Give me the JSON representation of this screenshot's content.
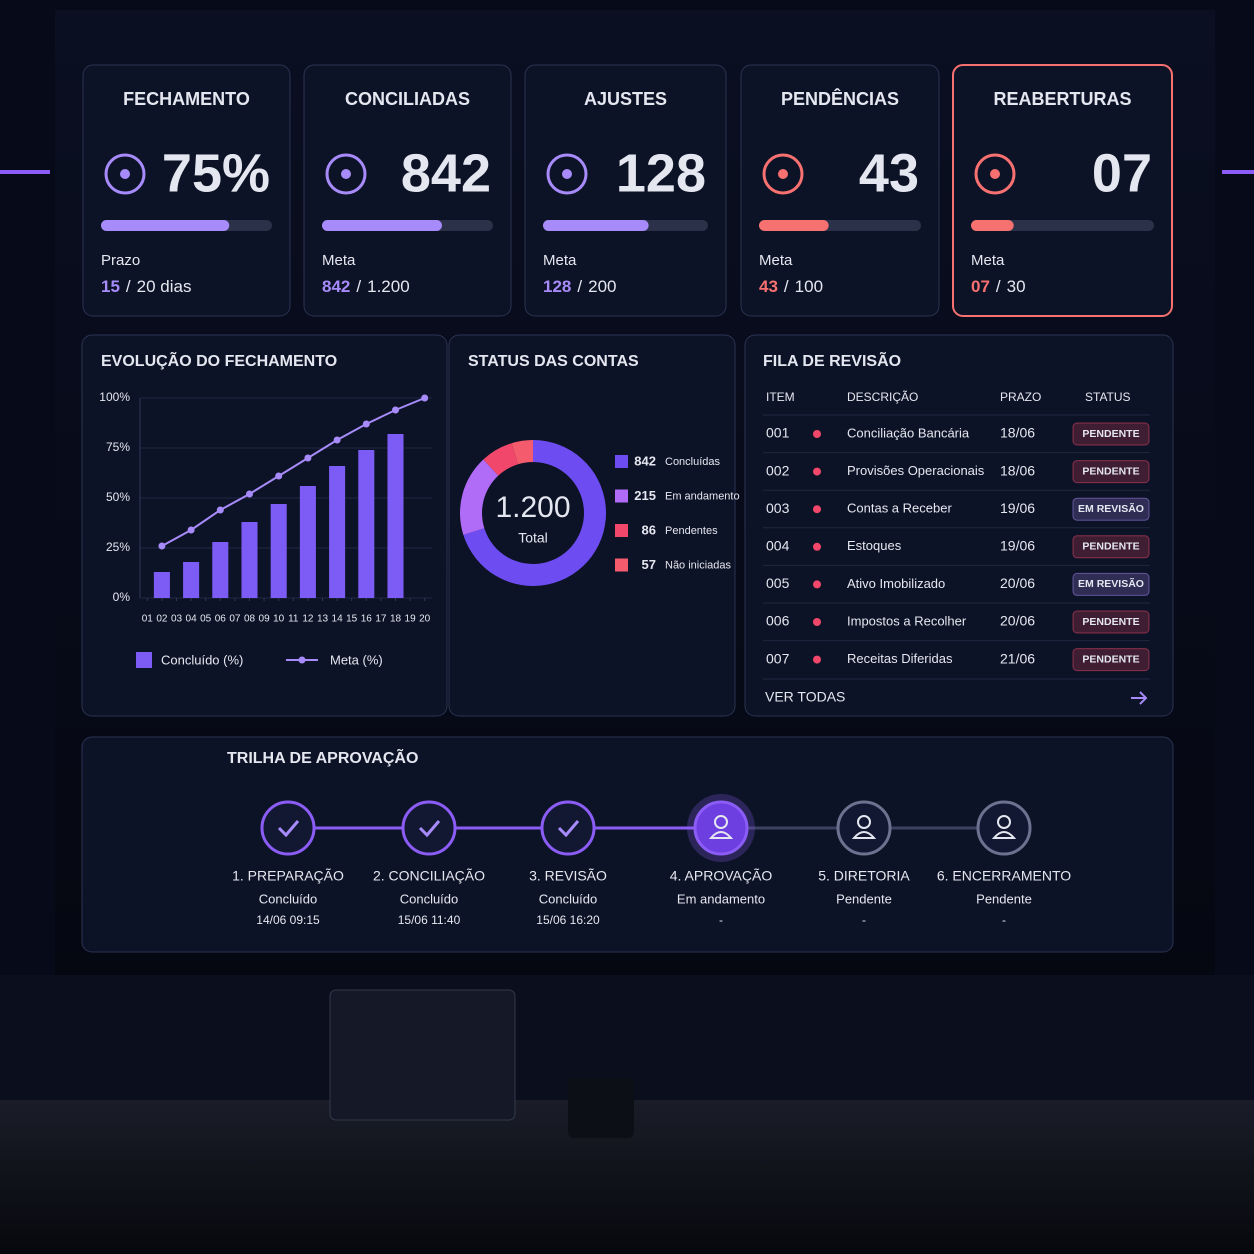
{
  "kpis": [
    {
      "title": "FECHAMENTO",
      "headline": "75%",
      "caption": "Prazo",
      "current": 15,
      "sep": "/",
      "target": {
        "value": 20,
        "label": "20 dias"
      },
      "color": "#a78bfa"
    },
    {
      "title": "CONCILIADAS",
      "headline": "842",
      "caption": "Meta",
      "current": 842,
      "sep": "/",
      "target": {
        "value": 1200,
        "label": "1.200"
      },
      "color": "#a78bfa"
    },
    {
      "title": "AJUSTES",
      "headline": "128",
      "caption": "Meta",
      "current": 128,
      "sep": "/",
      "target": 200,
      "color": "#a78bfa"
    },
    {
      "title": "PENDÊNCIAS",
      "headline": "43",
      "caption": "Meta",
      "current": 43,
      "sep": "/",
      "target": 100,
      "color": "#f87171"
    },
    {
      "title": "REABERTURAS",
      "headline": "07",
      "caption": "Meta",
      "current": {
        "value": 7,
        "label": "07"
      },
      "sep": "/",
      "target": 30,
      "color": "#f87171",
      "highlight": true
    }
  ],
  "chart_data": [
    {
      "type": "bar",
      "title": "EVOLUÇÃO DO FECHAMENTO",
      "xlim": [
        0.5,
        20.5
      ],
      "xticks": [
        {
          "value": 1,
          "label": "01"
        },
        {
          "value": 2,
          "label": "02"
        },
        {
          "value": 3,
          "label": "03"
        },
        {
          "value": 4,
          "label": "04"
        },
        {
          "value": 5,
          "label": "05"
        },
        {
          "value": 6,
          "label": "06"
        },
        {
          "value": 7,
          "label": "07"
        },
        {
          "value": 8,
          "label": "08"
        },
        {
          "value": 9,
          "label": "09"
        },
        10,
        11,
        12,
        13,
        14,
        15,
        16,
        17,
        18,
        19,
        20
      ],
      "ylim": [
        0,
        100
      ],
      "yticks": [
        {
          "value": 0,
          "label": "0%"
        },
        {
          "value": 25,
          "label": "25%"
        },
        {
          "value": 50,
          "label": "50%"
        },
        {
          "value": 75,
          "label": "75%"
        },
        {
          "value": 100,
          "label": "100%"
        }
      ],
      "grid": true,
      "series": [
        {
          "name": "Concluído (%)",
          "type": "bar",
          "color": "#7c5cf5",
          "x": [
            2,
            4,
            6,
            8,
            10,
            12,
            14,
            16,
            18
          ],
          "values": [
            13,
            18,
            28,
            38,
            47,
            56,
            66,
            74,
            82
          ]
        },
        {
          "name": "Meta (%)",
          "type": "line",
          "color": "#a78bfa",
          "x": [
            2,
            4,
            6,
            8,
            10,
            12,
            14,
            16,
            18,
            20
          ],
          "values": [
            26,
            34,
            44,
            52,
            61,
            70,
            79,
            87,
            94,
            100
          ]
        }
      ]
    },
    {
      "type": "donut",
      "title": "STATUS DAS CONTAS",
      "center_label": "1.200",
      "center_sublabel": "Total",
      "categories": [
        "Concluídas",
        "Em andamento",
        "Pendentes",
        "Não iniciadas"
      ],
      "values": [
        842,
        215,
        86,
        57
      ],
      "colors": [
        "#6d4df2",
        "#b06cf7",
        "#f0476a",
        "#f45b6c"
      ]
    }
  ],
  "review_queue": {
    "title": "FILA DE REVISÃO",
    "headers": [
      "ITEM",
      "DESCRIÇÃO",
      "PRAZO",
      "STATUS"
    ],
    "rows": [
      {
        "item": "001",
        "description": "Conciliação Bancária",
        "due": "18/06",
        "status": "PENDENTE",
        "color": "#f0476a"
      },
      {
        "item": "002",
        "description": "Provisões Operacionais",
        "due": "18/06",
        "status": "PENDENTE",
        "color": "#f0476a"
      },
      {
        "item": "003",
        "description": "Contas a Receber",
        "due": "19/06",
        "status": "EM REVISÃO",
        "color": "#a78bfa"
      },
      {
        "item": "004",
        "description": "Estoques",
        "due": "19/06",
        "status": "PENDENTE",
        "color": "#f0476a"
      },
      {
        "item": "005",
        "description": "Ativo Imobilizado",
        "due": "20/06",
        "status": "EM REVISÃO",
        "color": "#a78bfa"
      },
      {
        "item": "006",
        "description": "Impostos a Recolher",
        "due": "20/06",
        "status": "PENDENTE",
        "color": "#f0476a"
      },
      {
        "item": "007",
        "description": "Receitas Diferidas",
        "due": "21/06",
        "status": "PENDENTE",
        "color": "#f0476a"
      }
    ],
    "link": "VER TODAS"
  },
  "approval_trail": {
    "title": "TRILHA DE APROVAÇÃO",
    "steps": [
      {
        "name": "1. PREPARAÇÃO",
        "status": "Concluído",
        "time": "14/06 09:15",
        "state": "done"
      },
      {
        "name": "2. CONCILIAÇÃO",
        "status": "Concluído",
        "time": "15/06 11:40",
        "state": "done"
      },
      {
        "name": "3. REVISÃO",
        "status": "Concluído",
        "time": "15/06 16:20",
        "state": "done"
      },
      {
        "name": "4. APROVAÇÃO",
        "status": "Em andamento",
        "time": "-",
        "state": "active"
      },
      {
        "name": "5. DIRETORIA",
        "status": "Pendente",
        "time": "-",
        "state": "pending"
      },
      {
        "name": "6. ENCERRAMENTO",
        "status": "Pendente",
        "time": "-",
        "state": "pending"
      }
    ]
  }
}
